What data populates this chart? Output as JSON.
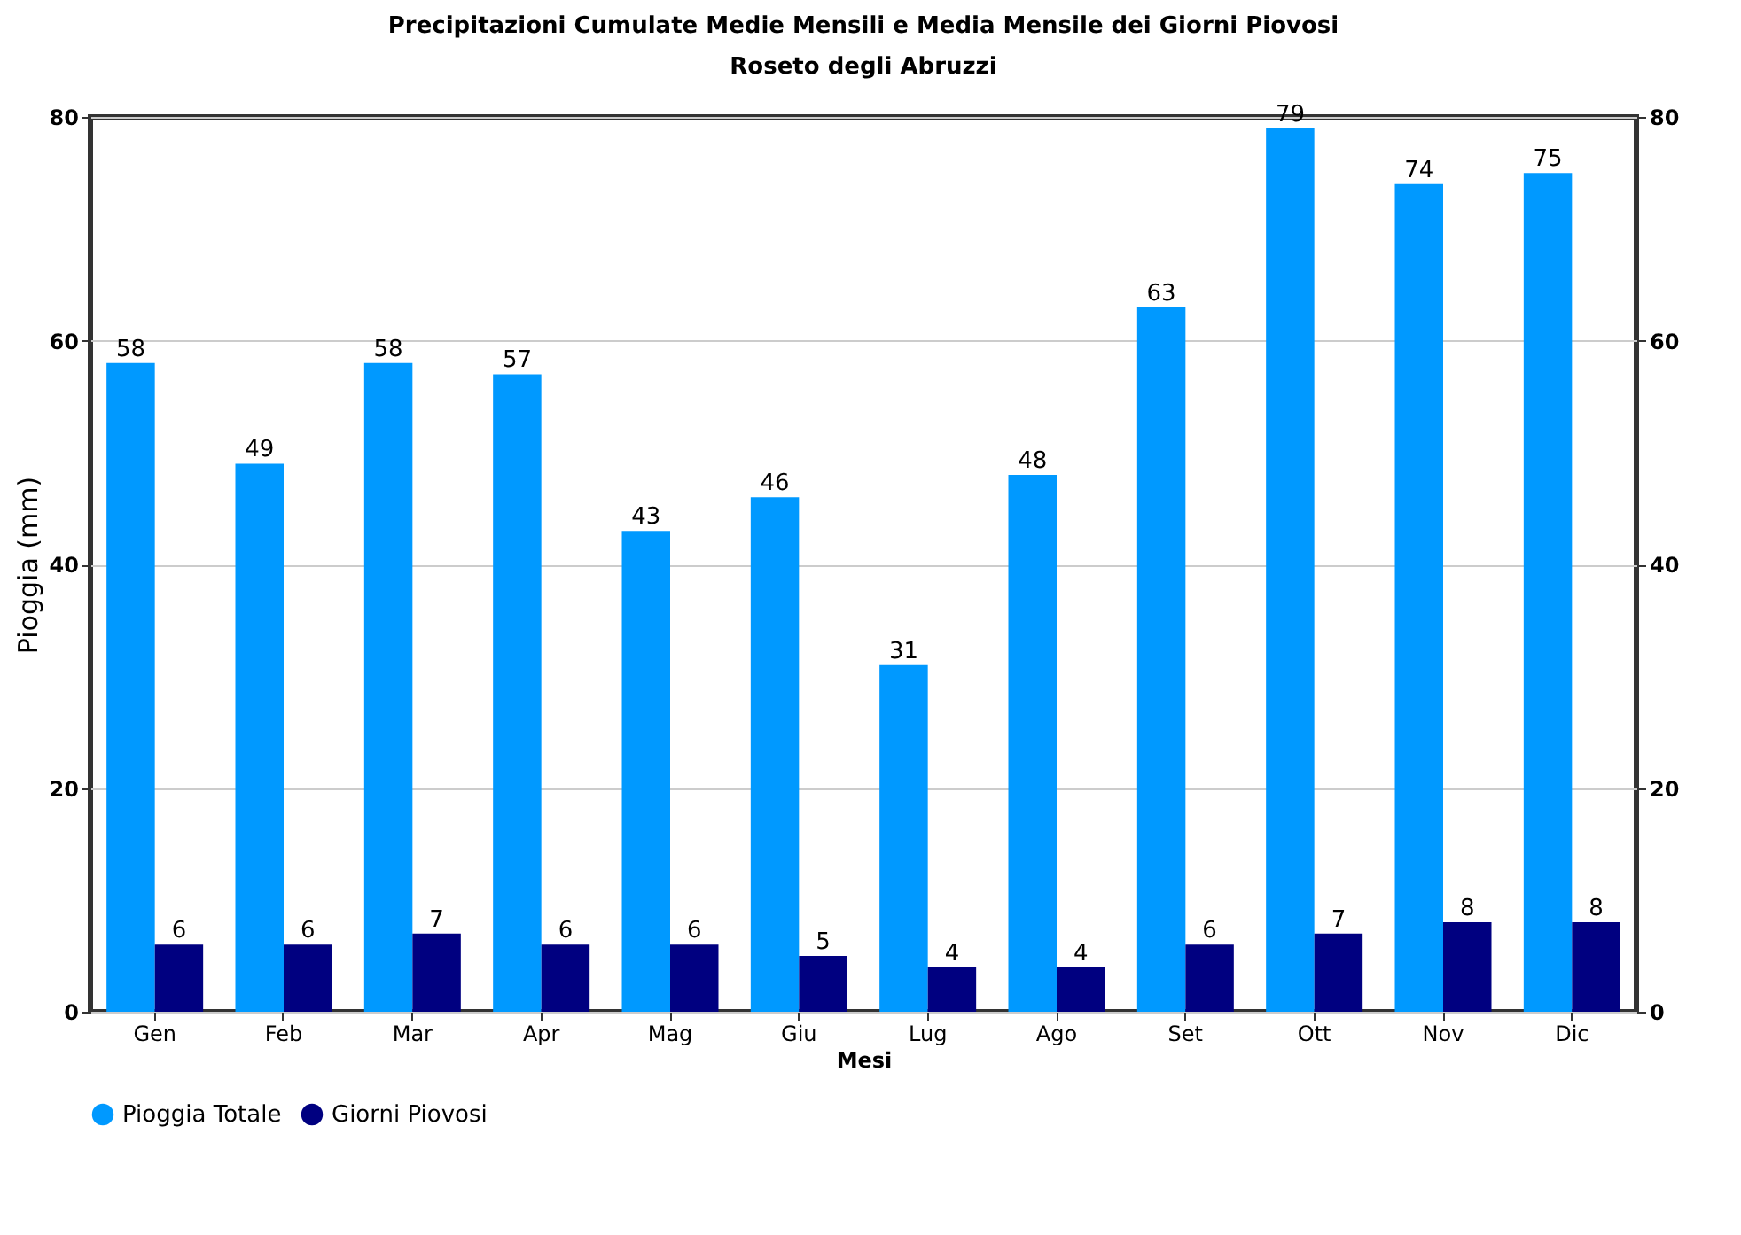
{
  "chart_data": {
    "type": "bar",
    "title": "Precipitazioni Cumulate Medie Mensili e Media Mensile dei Giorni Piovosi",
    "subtitle": "Roseto degli Abruzzi",
    "xlabel": "Mesi",
    "ylabel": "Pioggia (mm)",
    "categories": [
      "Gen",
      "Feb",
      "Mar",
      "Apr",
      "Mag",
      "Giu",
      "Lug",
      "Ago",
      "Set",
      "Ott",
      "Nov",
      "Dic"
    ],
    "series": [
      {
        "name": "Pioggia Totale",
        "color": "#0099ff",
        "values": [
          58,
          49,
          58,
          57,
          43,
          46,
          31,
          48,
          63,
          79,
          74,
          75
        ]
      },
      {
        "name": "Giorni Piovosi",
        "color": "#000080",
        "values": [
          6,
          6,
          7,
          6,
          6,
          5,
          4,
          4,
          6,
          7,
          8,
          8
        ]
      }
    ],
    "ylim": [
      0,
      80
    ],
    "yticks": [
      0,
      20,
      40,
      60,
      80
    ],
    "y2lim": [
      0,
      80
    ],
    "y2ticks": [
      0,
      20,
      40,
      60,
      80
    ],
    "grid": "y",
    "legend": "bottom",
    "data_labels": true
  }
}
